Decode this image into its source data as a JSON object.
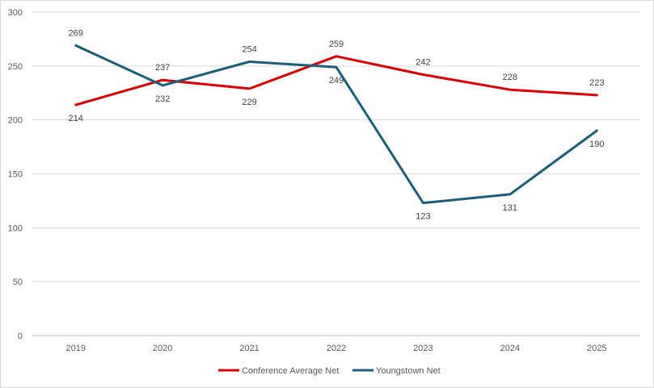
{
  "chart_data": {
    "type": "line",
    "title": "",
    "xlabel": "",
    "ylabel": "",
    "categories": [
      "2019",
      "2020",
      "2021",
      "2022",
      "2023",
      "2024",
      "2025"
    ],
    "ylim": [
      0,
      300
    ],
    "yticks": [
      0,
      50,
      100,
      150,
      200,
      250,
      300
    ],
    "grid": true,
    "legend_position": "bottom",
    "series": [
      {
        "name": "Conference Average Net",
        "color": "#e00000",
        "values": [
          214,
          237,
          229,
          259,
          242,
          228,
          223
        ],
        "labels": [
          "214",
          "237",
          "229",
          "259",
          "242",
          "228",
          "223"
        ],
        "label_side": [
          "below",
          "above",
          "below",
          "above",
          "above",
          "above",
          "above"
        ]
      },
      {
        "name": "Youngstown Net",
        "color": "#1a5f7a",
        "values": [
          269,
          232,
          254,
          249,
          123,
          131,
          190
        ],
        "labels": [
          "269",
          "232",
          "254",
          "249",
          "123",
          "131",
          "190"
        ],
        "label_side": [
          "above",
          "below",
          "above",
          "below",
          "below",
          "below",
          "below"
        ]
      }
    ]
  }
}
